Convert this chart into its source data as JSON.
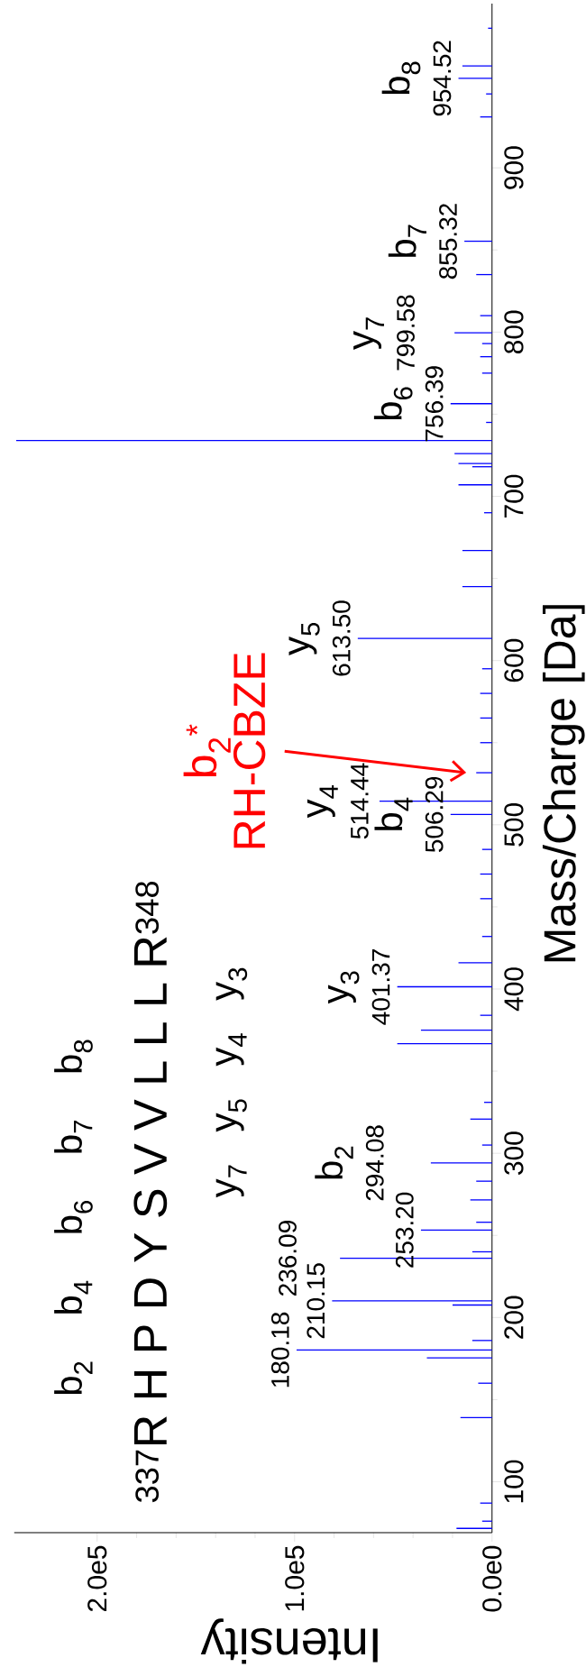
{
  "chart_data": {
    "type": "bar",
    "orientation": "horizontal",
    "color": "#0000ff",
    "x": [
      71.6,
      76,
      87,
      139,
      160,
      175.4,
      180.18,
      186,
      207.6,
      210.15,
      236.09,
      240,
      253.2,
      258,
      271.6,
      283,
      294.08,
      305,
      320.8,
      331,
      366.7,
      375,
      384,
      401.37,
      416,
      432,
      455,
      470,
      485,
      506.29,
      514.44,
      531.7,
      550,
      565,
      580,
      595,
      613.5,
      645,
      667,
      690,
      707,
      718,
      720,
      726,
      734,
      745,
      756.39,
      775,
      785,
      793,
      799.58,
      810,
      835,
      855.32,
      931,
      945,
      954.52,
      962,
      985
    ],
    "values": [
      18000,
      5000,
      6000,
      16000,
      7000,
      33000,
      99000,
      10000,
      20000,
      81000,
      77000,
      10000,
      36000,
      8000,
      11000,
      8000,
      31000,
      5000,
      11000,
      4000,
      48000,
      36000,
      6000,
      48000,
      17000,
      5000,
      6000,
      6000,
      5000,
      21000,
      57000,
      8000,
      6000,
      6000,
      6000,
      5000,
      68000,
      15000,
      15000,
      4000,
      17000,
      10000,
      17000,
      19000,
      241000,
      3000,
      21000,
      5000,
      6000,
      5000,
      19000,
      6000,
      8000,
      14000,
      6000,
      3000,
      17000,
      15000,
      2000
    ],
    "xlim": [
      242000,
      0
    ],
    "ylim": [
      69,
      1000
    ],
    "xticks": [
      {
        "value": 200000,
        "label": "2.0e5"
      },
      {
        "value": 100000,
        "label": "1.0e5"
      },
      {
        "value": 0,
        "label": "0.0e0"
      }
    ],
    "yticks": [
      100,
      200,
      300,
      400,
      500,
      600,
      700,
      800,
      900
    ],
    "xlabel": "Intensity",
    "ylabel": "Mass/Charge [Da]",
    "annotations": [
      "$^{337}$R H P D Y S V V L L L R$^{348}$",
      "b$_{2}$ b$_{4}$ b$_{6}$ b$_{7}$ b$_{8}$",
      "y$_{7}$ y$_{5}$ y$_{4}$ y$_{3}$",
      {
        "text": "180.18",
        "x": 99000,
        "y": 180.18
      },
      {
        "text": "210.15",
        "x": 81000,
        "y": 210.15
      },
      {
        "text": "236.09",
        "x": 77000,
        "y": 236.09
      },
      {
        "text": "253.20",
        "x": 36000,
        "y": 253.2
      },
      {
        "text": "294.08",
        "x": 31000,
        "y": 294.08
      },
      {
        "text": "b$_{2}$",
        "x": 31000,
        "y": 294.08
      },
      {
        "text": "401.37",
        "x": 48000,
        "y": 401.37
      },
      {
        "text": "y$_{3}$",
        "x": 48000,
        "y": 401.37
      },
      {
        "text": "506.29",
        "x": 21000,
        "y": 506.29
      },
      {
        "text": "b$_{4}$",
        "x": 21000,
        "y": 506.29
      },
      {
        "text": "514.44",
        "x": 57000,
        "y": 514.44
      },
      {
        "text": "y$_{4}$",
        "x": 57000,
        "y": 514.44
      },
      {
        "text": "613.50",
        "x": 68000,
        "y": 613.5
      },
      {
        "text": "y$_{5}$",
        "x": 68000,
        "y": 613.5
      },
      {
        "text": "756.39",
        "x": 21000,
        "y": 756.39
      },
      {
        "text": "b$_{6}$",
        "x": 21000,
        "y": 756.39
      },
      {
        "text": "799.58",
        "x": 19000,
        "y": 799.58
      },
      {
        "text": "y$_{7}$",
        "x": 19000,
        "y": 799.58
      },
      {
        "text": "855.32",
        "x": 14000,
        "y": 855.32
      },
      {
        "text": "b$_{7}$",
        "x": 14000,
        "y": 855.32
      },
      {
        "text": "954.52",
        "x": 17000,
        "y": 954.52
      },
      {
        "text": "b$_{8}$",
        "x": 17000,
        "y": 954.52
      },
      "b$_{2}$$^{*}$ RH-CBZE"
    ]
  }
}
